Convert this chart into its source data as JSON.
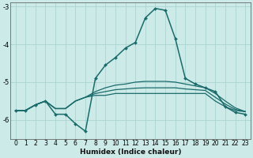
{
  "xlabel": "Humidex (Indice chaleur)",
  "xlim": [
    -0.5,
    23.5
  ],
  "ylim": [
    -6.5,
    -2.9
  ],
  "yticks": [
    -6,
    -5,
    -4,
    -3
  ],
  "xticks": [
    0,
    1,
    2,
    3,
    4,
    5,
    6,
    7,
    8,
    9,
    10,
    11,
    12,
    13,
    14,
    15,
    16,
    17,
    18,
    19,
    20,
    21,
    22,
    23
  ],
  "background_color": "#cceae8",
  "grid_color": "#aad4d0",
  "line_color": "#1a6b6b",
  "main_x": [
    0,
    1,
    2,
    3,
    4,
    5,
    6,
    7,
    8,
    9,
    10,
    11,
    12,
    13,
    14,
    15,
    16,
    17,
    18,
    19,
    20,
    21,
    22,
    23
  ],
  "main_y": [
    -5.75,
    -5.75,
    -5.6,
    -5.5,
    -5.85,
    -5.85,
    -6.1,
    -6.3,
    -4.9,
    -4.55,
    -4.35,
    -4.1,
    -3.95,
    -3.3,
    -3.05,
    -3.1,
    -3.85,
    -4.9,
    -5.05,
    -5.15,
    -5.25,
    -5.65,
    -5.8,
    -5.85
  ],
  "flat1_x": [
    0,
    1,
    2,
    3,
    4,
    5,
    6,
    7,
    8,
    9,
    10,
    11,
    12,
    13,
    14,
    15,
    16,
    17,
    18,
    19,
    20,
    21,
    22,
    23
  ],
  "flat1_y": [
    -5.75,
    -5.75,
    -5.6,
    -5.5,
    -5.7,
    -5.7,
    -5.5,
    -5.4,
    -5.35,
    -5.35,
    -5.3,
    -5.3,
    -5.3,
    -5.3,
    -5.3,
    -5.3,
    -5.3,
    -5.3,
    -5.3,
    -5.3,
    -5.5,
    -5.65,
    -5.75,
    -5.78
  ],
  "flat2_x": [
    0,
    1,
    2,
    3,
    4,
    5,
    6,
    7,
    8,
    9,
    10,
    11,
    12,
    13,
    14,
    15,
    16,
    17,
    18,
    19,
    20,
    21,
    22,
    23
  ],
  "flat2_y": [
    -5.75,
    -5.75,
    -5.6,
    -5.5,
    -5.7,
    -5.7,
    -5.5,
    -5.4,
    -5.3,
    -5.25,
    -5.2,
    -5.18,
    -5.16,
    -5.15,
    -5.15,
    -5.15,
    -5.15,
    -5.18,
    -5.2,
    -5.22,
    -5.4,
    -5.58,
    -5.72,
    -5.78
  ],
  "flat3_x": [
    0,
    1,
    2,
    3,
    4,
    5,
    6,
    7,
    8,
    9,
    10,
    11,
    12,
    13,
    14,
    15,
    16,
    17,
    18,
    19,
    20,
    21,
    22,
    23
  ],
  "flat3_y": [
    -5.75,
    -5.75,
    -5.6,
    -5.5,
    -5.7,
    -5.7,
    -5.5,
    -5.4,
    -5.25,
    -5.15,
    -5.08,
    -5.05,
    -5.0,
    -4.98,
    -4.98,
    -4.98,
    -5.0,
    -5.05,
    -5.1,
    -5.15,
    -5.3,
    -5.5,
    -5.68,
    -5.78
  ]
}
